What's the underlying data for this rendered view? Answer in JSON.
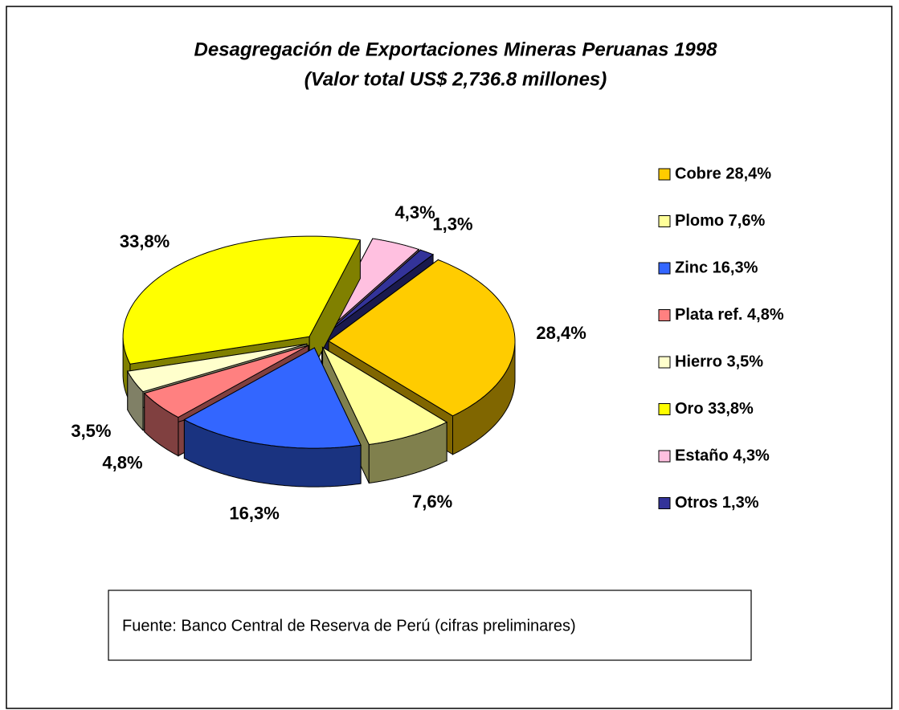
{
  "chart_data": {
    "type": "pie",
    "title": "Desagregación de Exportaciones Mineras Peruanas 1998",
    "subtitle": "(Valor total US$ 2,736.8 millones)",
    "categories": [
      "Cobre 28,4%",
      "Plomo 7,6%",
      "Zinc 16,3%",
      "Plata ref. 4,8%",
      "Hierro 3,5%",
      "Oro 33,8%",
      "Estaño 4,3%",
      "Otros 1,3%"
    ],
    "values": [
      28.4,
      7.6,
      16.3,
      4.8,
      3.5,
      33.8,
      4.3,
      1.3
    ],
    "value_labels": [
      "28,4%",
      "7,6%",
      "16,3%",
      "4,8%",
      "3,5%",
      "33,8%",
      "4,3%",
      "1,3%"
    ],
    "colors": [
      "#ffcc00",
      "#ffff99",
      "#3366ff",
      "#ff8080",
      "#ffffcc",
      "#ffff00",
      "#ffc0e0",
      "#333399"
    ],
    "legend": "right",
    "source": "Fuente: Banco Central de Reserva de Perú (cifras preliminares)"
  }
}
